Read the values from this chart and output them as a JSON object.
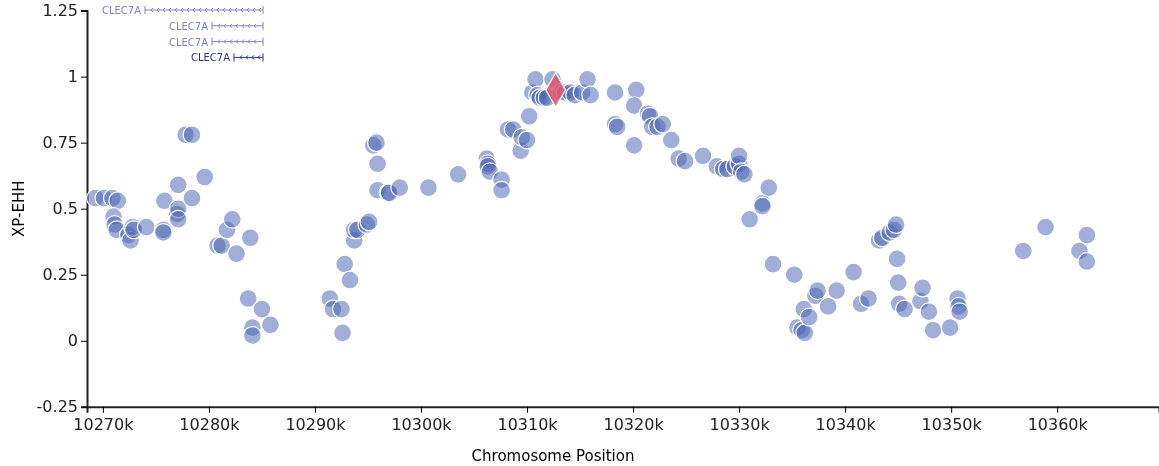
{
  "chart_data": {
    "type": "scatter",
    "xlabel": "Chromosome Position",
    "ylabel": "XP-EHH",
    "xlim": [
      10268.5,
      10369.6
    ],
    "ylim": [
      -0.25,
      1.25
    ],
    "xticks": [
      {
        "value": 10270,
        "label": "10270k"
      },
      {
        "value": 10280,
        "label": "10280k"
      },
      {
        "value": 10290,
        "label": "10290k"
      },
      {
        "value": 10300,
        "label": "10300k"
      },
      {
        "value": 10310,
        "label": "10310k"
      },
      {
        "value": 10320,
        "label": "10320k"
      },
      {
        "value": 10330,
        "label": "10330k"
      },
      {
        "value": 10340,
        "label": "10340k"
      },
      {
        "value": 10350,
        "label": "10350k"
      },
      {
        "value": 10360,
        "label": "10360k"
      }
    ],
    "yticks": [
      -0.25,
      0,
      0.25,
      0.5,
      0.75,
      1,
      1.25
    ],
    "grid": false,
    "marker": "circle",
    "annotations": [
      "CLEC7A",
      "CLEC7A",
      "CLEC7A",
      "CLEC7A"
    ],
    "series": [
      {
        "color": "#4a63b5",
        "x": [
          10269.3,
          10270.1,
          10270.9,
          10271.4,
          10271.0,
          10271.1,
          10271.3,
          10272.4,
          10272.6,
          10272.8,
          10272.9,
          10274.1,
          10275.7,
          10275.7,
          10275.8,
          10277.0,
          10277.1,
          10277.1,
          10277.1,
          10277.8,
          10278.4,
          10278.4,
          10279.6,
          10280.8,
          10281.2,
          10281.7,
          10282.2,
          10282.6,
          10283.9,
          10283.7,
          10284.1,
          10284.1,
          10285.0,
          10285.8,
          10291.4,
          10291.7,
          10292.5,
          10292.6,
          10292.8,
          10293.3,
          10293.7,
          10293.7,
          10294.0,
          10294.9,
          10295.1,
          10295.5,
          10295.8,
          10295.9,
          10295.9,
          10296.9,
          10297.0,
          10298.0,
          10300.7,
          10303.5,
          10306.2,
          10306.3,
          10306.3,
          10306.5,
          10307.6,
          10307.6,
          10308.2,
          10308.7,
          10309.4,
          10309.5,
          10310.0,
          10310.2,
          10310.5,
          10310.8,
          10311.0,
          10311.2,
          10311.6,
          10311.9,
          10312.4,
          10313.2,
          10313.6,
          10314.1,
          10314.5,
          10315.2,
          10315.7,
          10316.0,
          10318.3,
          10318.3,
          10318.5,
          10320.1,
          10320.3,
          10320.1,
          10321.4,
          10321.6,
          10321.8,
          10322.3,
          10322.8,
          10323.6,
          10324.3,
          10324.9,
          10326.6,
          10327.9,
          10328.5,
          10328.9,
          10329.6,
          10330.0,
          10330.0,
          10330.2,
          10330.5,
          10331.0,
          10332.2,
          10332.2,
          10332.8,
          10333.2,
          10335.2,
          10335.5,
          10335.9,
          10336.1,
          10336.2,
          10336.6,
          10337.2,
          10337.4,
          10338.4,
          10339.2,
          10340.8,
          10341.5,
          10342.2,
          10343.2,
          10343.5,
          10344.2,
          10344.6,
          10344.8,
          10344.9,
          10345.0,
          10345.1,
          10345.6,
          10347.1,
          10347.3,
          10347.9,
          10348.3,
          10349.9,
          10350.6,
          10350.7,
          10350.8,
          10356.8,
          10358.9,
          10362.1,
          10362.8,
          10362.8
        ],
        "values": [
          0.54,
          0.54,
          0.54,
          0.53,
          0.47,
          0.44,
          0.42,
          0.4,
          0.38,
          0.43,
          0.42,
          0.43,
          0.42,
          0.41,
          0.53,
          0.48,
          0.5,
          0.46,
          0.59,
          0.78,
          0.78,
          0.54,
          0.62,
          0.36,
          0.36,
          0.42,
          0.46,
          0.33,
          0.39,
          0.16,
          0.05,
          0.02,
          0.12,
          0.06,
          0.16,
          0.12,
          0.12,
          0.03,
          0.29,
          0.23,
          0.38,
          0.42,
          0.42,
          0.44,
          0.45,
          0.74,
          0.75,
          0.67,
          0.57,
          0.56,
          0.56,
          0.58,
          0.58,
          0.63,
          0.69,
          0.67,
          0.66,
          0.64,
          0.61,
          0.57,
          0.8,
          0.8,
          0.72,
          0.77,
          0.76,
          0.85,
          0.94,
          0.99,
          0.93,
          0.92,
          0.92,
          0.92,
          0.99,
          0.94,
          0.94,
          0.94,
          0.93,
          0.94,
          0.99,
          0.93,
          0.94,
          0.82,
          0.81,
          0.74,
          0.95,
          0.89,
          0.86,
          0.85,
          0.81,
          0.81,
          0.82,
          0.76,
          0.69,
          0.68,
          0.7,
          0.66,
          0.65,
          0.65,
          0.66,
          0.67,
          0.7,
          0.64,
          0.63,
          0.46,
          0.52,
          0.51,
          0.58,
          0.29,
          0.25,
          0.05,
          0.04,
          0.12,
          0.03,
          0.09,
          0.17,
          0.19,
          0.13,
          0.19,
          0.26,
          0.14,
          0.16,
          0.38,
          0.39,
          0.41,
          0.42,
          0.44,
          0.31,
          0.22,
          0.14,
          0.12,
          0.15,
          0.2,
          0.11,
          0.04,
          0.05,
          0.16,
          0.13,
          0.11,
          0.34,
          0.43,
          0.34,
          0.3,
          0.4
        ]
      },
      {
        "color": "#d9566b",
        "marker": "diamond",
        "x": [
          10312.7
        ],
        "values": [
          0.95
        ]
      }
    ]
  }
}
